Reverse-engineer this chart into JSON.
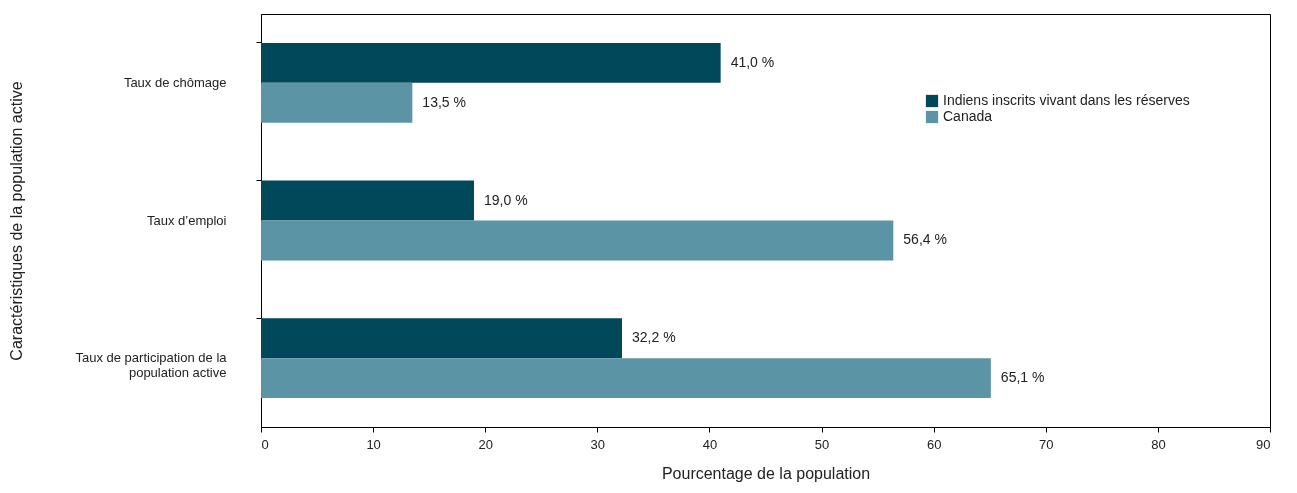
{
  "chart_data": {
    "type": "bar",
    "orientation": "horizontal",
    "xlabel": "Pourcentage de la population",
    "ylabel": "Caractéristiques de la population active",
    "categories": [
      "Taux de chômage",
      "Taux d’emploi",
      "Taux de participation de la population active"
    ],
    "series": [
      {
        "name": "Indiens inscrits vivant dans les réserves",
        "color": "#00485a",
        "values": [
          41.0,
          19.0,
          32.2
        ],
        "value_labels": [
          "41,0 %",
          "19,0 %",
          "32,2 %"
        ]
      },
      {
        "name": "Canada",
        "color": "#5b94a5",
        "values": [
          13.5,
          56.4,
          65.1
        ],
        "value_labels": [
          "13,5 %",
          "56,4 %",
          "65,1 %"
        ]
      }
    ],
    "xlim": [
      0,
      90
    ],
    "xticks": [
      0,
      10,
      20,
      30,
      40,
      50,
      60,
      70,
      80,
      90
    ],
    "grid": false,
    "legend": "top right"
  }
}
